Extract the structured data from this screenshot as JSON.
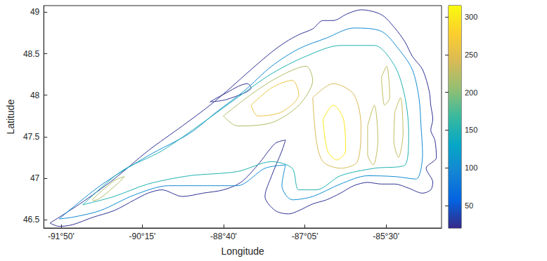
{
  "chart_data": {
    "type": "contour",
    "xlabel": "Longitude",
    "ylabel": "Latitude",
    "xlim": [
      -92.17,
      -84.42
    ],
    "ylim": [
      46.4,
      49.08
    ],
    "xticks": [
      {
        "value": -91.8333,
        "label": "-91°50'"
      },
      {
        "value": -90.25,
        "label": "-90°15'"
      },
      {
        "value": -88.6667,
        "label": "-88°40'"
      },
      {
        "value": -87.0833,
        "label": "-87°05'"
      },
      {
        "value": -85.5,
        "label": "-85°30'"
      }
    ],
    "yticks": [
      46.5,
      47,
      47.5,
      48,
      48.5,
      49
    ],
    "colorbar": {
      "range": [
        20,
        315
      ],
      "ticks": [
        50,
        100,
        150,
        200,
        250,
        300
      ]
    },
    "contours": [
      {
        "level": 25,
        "points": [
          [
            -92.05,
            46.46
          ],
          [
            -91.47,
            46.69
          ],
          [
            -90.8,
            46.99
          ],
          [
            -90.14,
            47.33
          ],
          [
            -89.47,
            47.63
          ],
          [
            -88.93,
            47.88
          ],
          [
            -88.53,
            48.09
          ],
          [
            -88.13,
            48.31
          ],
          [
            -87.73,
            48.52
          ],
          [
            -87.46,
            48.64
          ],
          [
            -87.2,
            48.73
          ],
          [
            -86.93,
            48.8
          ],
          [
            -86.73,
            48.9
          ],
          [
            -86.53,
            48.9
          ],
          [
            -86.26,
            48.98
          ],
          [
            -85.99,
            49.03
          ],
          [
            -85.59,
            48.97
          ],
          [
            -85.33,
            48.81
          ],
          [
            -85.13,
            48.64
          ],
          [
            -84.99,
            48.47
          ],
          [
            -84.79,
            48.31
          ],
          [
            -84.66,
            48.05
          ],
          [
            -84.63,
            47.88
          ],
          [
            -84.59,
            47.71
          ],
          [
            -84.63,
            47.58
          ],
          [
            -84.55,
            47.46
          ],
          [
            -84.52,
            47.25
          ],
          [
            -84.72,
            47.12
          ],
          [
            -84.59,
            46.95
          ],
          [
            -84.63,
            46.86
          ],
          [
            -84.79,
            46.82
          ],
          [
            -85.06,
            46.88
          ],
          [
            -85.33,
            46.93
          ],
          [
            -85.59,
            46.93
          ],
          [
            -85.86,
            46.95
          ],
          [
            -86.13,
            46.91
          ],
          [
            -86.39,
            46.82
          ],
          [
            -86.66,
            46.74
          ],
          [
            -86.93,
            46.69
          ],
          [
            -87.2,
            46.61
          ],
          [
            -87.4,
            46.57
          ],
          [
            -87.66,
            46.61
          ],
          [
            -87.86,
            46.78
          ],
          [
            -87.73,
            47.03
          ],
          [
            -87.53,
            47.33
          ],
          [
            -87.46,
            47.46
          ],
          [
            -87.66,
            47.42
          ],
          [
            -88.0,
            47.16
          ],
          [
            -88.33,
            46.95
          ],
          [
            -88.67,
            46.86
          ],
          [
            -89.07,
            46.82
          ],
          [
            -89.47,
            46.78
          ],
          [
            -89.87,
            46.86
          ],
          [
            -90.14,
            46.82
          ],
          [
            -90.4,
            46.74
          ],
          [
            -90.8,
            46.61
          ],
          [
            -91.21,
            46.53
          ],
          [
            -91.61,
            46.44
          ],
          [
            -91.87,
            46.42
          ],
          [
            -92.05,
            46.46
          ]
        ]
      },
      {
        "level": 25,
        "points": [
          [
            -88.93,
            47.92
          ],
          [
            -88.67,
            48.01
          ],
          [
            -88.2,
            48.14
          ],
          [
            -88.13,
            48.09
          ],
          [
            -88.6,
            47.95
          ],
          [
            -88.93,
            47.92
          ]
        ]
      },
      {
        "level": 100,
        "points": [
          [
            -91.87,
            46.51
          ],
          [
            -91.07,
            46.91
          ],
          [
            -90.14,
            47.27
          ],
          [
            -89.33,
            47.54
          ],
          [
            -88.8,
            47.8
          ],
          [
            -88.27,
            48.05
          ],
          [
            -87.73,
            48.35
          ],
          [
            -87.2,
            48.56
          ],
          [
            -86.66,
            48.69
          ],
          [
            -86.13,
            48.81
          ],
          [
            -85.59,
            48.77
          ],
          [
            -85.26,
            48.56
          ],
          [
            -84.99,
            48.31
          ],
          [
            -84.86,
            47.97
          ],
          [
            -84.82,
            47.63
          ],
          [
            -84.79,
            47.29
          ],
          [
            -84.92,
            46.99
          ],
          [
            -85.33,
            47.02
          ],
          [
            -85.86,
            47.03
          ],
          [
            -86.39,
            46.93
          ],
          [
            -86.93,
            46.78
          ],
          [
            -87.33,
            46.74
          ],
          [
            -87.53,
            46.91
          ],
          [
            -87.46,
            47.16
          ],
          [
            -87.86,
            47.12
          ],
          [
            -88.4,
            46.91
          ],
          [
            -89.07,
            46.91
          ],
          [
            -89.74,
            46.91
          ],
          [
            -90.4,
            46.8
          ],
          [
            -91.07,
            46.61
          ],
          [
            -91.61,
            46.53
          ],
          [
            -91.87,
            46.51
          ]
        ]
      },
      {
        "level": 150,
        "points": [
          [
            -91.41,
            46.68
          ],
          [
            -90.67,
            47.08
          ],
          [
            -89.87,
            47.33
          ],
          [
            -89.07,
            47.67
          ],
          [
            -88.4,
            47.97
          ],
          [
            -87.73,
            48.26
          ],
          [
            -87.06,
            48.47
          ],
          [
            -86.39,
            48.6
          ],
          [
            -85.73,
            48.6
          ],
          [
            -85.33,
            48.35
          ],
          [
            -85.13,
            47.97
          ],
          [
            -85.06,
            47.54
          ],
          [
            -85.13,
            47.16
          ],
          [
            -85.73,
            47.12
          ],
          [
            -86.39,
            47.03
          ],
          [
            -86.86,
            46.86
          ],
          [
            -87.2,
            46.86
          ],
          [
            -87.33,
            47.12
          ],
          [
            -87.73,
            47.2
          ],
          [
            -88.4,
            47.08
          ],
          [
            -89.33,
            47.03
          ],
          [
            -90.14,
            46.93
          ],
          [
            -90.8,
            46.78
          ],
          [
            -91.41,
            46.68
          ]
        ]
      },
      {
        "level": 220,
        "points": [
          [
            -91.23,
            46.74
          ],
          [
            -90.8,
            46.97
          ],
          [
            -90.6,
            47.02
          ],
          [
            -90.74,
            46.93
          ],
          [
            -91.21,
            46.73
          ],
          [
            -91.23,
            46.74
          ]
        ]
      },
      {
        "level": 220,
        "points": [
          [
            -88.67,
            47.75
          ],
          [
            -88.13,
            48.01
          ],
          [
            -87.6,
            48.22
          ],
          [
            -87.06,
            48.35
          ],
          [
            -86.93,
            48.18
          ],
          [
            -87.2,
            47.88
          ],
          [
            -87.73,
            47.67
          ],
          [
            -88.4,
            47.63
          ],
          [
            -88.67,
            47.75
          ]
        ]
      },
      {
        "level": 260,
        "points": [
          [
            -88.13,
            47.88
          ],
          [
            -87.73,
            48.09
          ],
          [
            -87.33,
            48.18
          ],
          [
            -87.2,
            48.01
          ],
          [
            -87.53,
            47.8
          ],
          [
            -88.0,
            47.75
          ],
          [
            -88.13,
            47.88
          ]
        ]
      },
      {
        "level": 240,
        "points": [
          [
            -86.93,
            47.97
          ],
          [
            -86.53,
            48.14
          ],
          [
            -86.13,
            48.01
          ],
          [
            -85.99,
            47.63
          ],
          [
            -86.06,
            47.2
          ],
          [
            -86.39,
            47.12
          ],
          [
            -86.73,
            47.2
          ],
          [
            -86.86,
            47.46
          ],
          [
            -86.93,
            47.97
          ]
        ]
      },
      {
        "level": 300,
        "points": [
          [
            -86.73,
            47.71
          ],
          [
            -86.53,
            47.88
          ],
          [
            -86.33,
            47.71
          ],
          [
            -86.29,
            47.33
          ],
          [
            -86.46,
            47.22
          ],
          [
            -86.64,
            47.33
          ],
          [
            -86.73,
            47.71
          ]
        ]
      },
      {
        "level": 230,
        "points": [
          [
            -85.86,
            47.63
          ],
          [
            -85.73,
            47.88
          ],
          [
            -85.66,
            47.46
          ],
          [
            -85.75,
            47.16
          ],
          [
            -85.86,
            47.29
          ],
          [
            -85.86,
            47.63
          ]
        ]
      },
      {
        "level": 230,
        "points": [
          [
            -85.33,
            47.8
          ],
          [
            -85.22,
            47.97
          ],
          [
            -85.17,
            47.54
          ],
          [
            -85.26,
            47.25
          ],
          [
            -85.35,
            47.46
          ],
          [
            -85.33,
            47.8
          ]
        ]
      },
      {
        "level": 230,
        "points": [
          [
            -85.59,
            48.22
          ],
          [
            -85.49,
            48.35
          ],
          [
            -85.43,
            47.97
          ],
          [
            -85.53,
            47.88
          ],
          [
            -85.59,
            48.22
          ]
        ]
      }
    ]
  }
}
